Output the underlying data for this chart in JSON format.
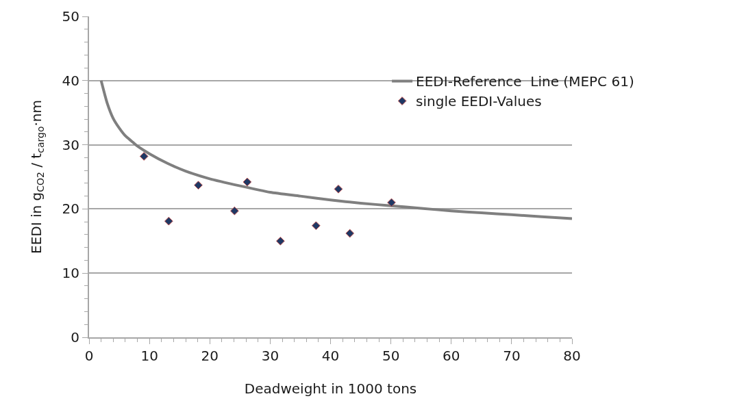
{
  "chart_data": {
    "type": "scatter",
    "xlabel": "Deadweight in 1000 tons",
    "ylabel": "EEDI in g$_{CO2}$ / t$_{cargo}$·nm",
    "series": [
      {
        "name": "EEDI-Reference  Line (MEPC 61)",
        "type": "line",
        "color": "#7f7f7f",
        "marker": "none",
        "line_style": "solid",
        "x": [
          2,
          3,
          4,
          5,
          6,
          7,
          8,
          10,
          13,
          16,
          20,
          25,
          30,
          35,
          40,
          45,
          50,
          55,
          60,
          65,
          70,
          75,
          80
        ],
        "values": [
          40.0,
          36.5,
          34.1,
          32.6,
          31.4,
          30.6,
          29.8,
          28.6,
          27.1,
          25.9,
          24.7,
          23.6,
          22.6,
          22.0,
          21.4,
          20.9,
          20.5,
          20.1,
          19.7,
          19.4,
          19.1,
          18.8,
          18.5
        ]
      },
      {
        "name": "single EEDI-Values",
        "color": "#1f3864",
        "marker": "diamond",
        "x": [
          9.1,
          13.2,
          18.1,
          24.1,
          26.2,
          31.7,
          37.6,
          41.3,
          43.2,
          50.1
        ],
        "values": [
          28.2,
          18.1,
          23.7,
          19.7,
          24.2,
          15.0,
          17.4,
          23.1,
          16.2,
          21.0
        ]
      }
    ],
    "xlim": [
      0,
      80
    ],
    "xticks": [
      0,
      {
        "value": 2,
        "label": null
      },
      {
        "value": 4,
        "label": null
      },
      {
        "value": 6,
        "label": null
      },
      {
        "value": 8,
        "label": null
      },
      10,
      {
        "value": 12,
        "label": null
      },
      {
        "value": 14,
        "label": null
      },
      {
        "value": 16,
        "label": null
      },
      {
        "value": 18,
        "label": null
      },
      20,
      {
        "value": 22,
        "label": null
      },
      {
        "value": 24,
        "label": null
      },
      {
        "value": 26,
        "label": null
      },
      {
        "value": 28,
        "label": null
      },
      30,
      {
        "value": 32,
        "label": null
      },
      {
        "value": 34,
        "label": null
      },
      {
        "value": 36,
        "label": null
      },
      {
        "value": 38,
        "label": null
      },
      40,
      {
        "value": 42,
        "label": null
      },
      {
        "value": 44,
        "label": null
      },
      {
        "value": 46,
        "label": null
      },
      {
        "value": 48,
        "label": null
      },
      50,
      {
        "value": 52,
        "label": null
      },
      {
        "value": 54,
        "label": null
      },
      {
        "value": 56,
        "label": null
      },
      {
        "value": 58,
        "label": null
      },
      60,
      {
        "value": 62,
        "label": null
      },
      {
        "value": 64,
        "label": null
      },
      {
        "value": 66,
        "label": null
      },
      {
        "value": 68,
        "label": null
      },
      70,
      {
        "value": 72,
        "label": null
      },
      {
        "value": 74,
        "label": null
      },
      {
        "value": 76,
        "label": null
      },
      {
        "value": 78,
        "label": null
      },
      80
    ],
    "ylim": [
      0,
      50
    ],
    "yticks": [
      0,
      {
        "value": 2,
        "label": null
      },
      {
        "value": 4,
        "label": null
      },
      {
        "value": 6,
        "label": null
      },
      {
        "value": 8,
        "label": null
      },
      10,
      {
        "value": 12,
        "label": null
      },
      {
        "value": 14,
        "label": null
      },
      {
        "value": 16,
        "label": null
      },
      {
        "value": 18,
        "label": null
      },
      20,
      {
        "value": 22,
        "label": null
      },
      {
        "value": 24,
        "label": null
      },
      {
        "value": 26,
        "label": null
      },
      {
        "value": 28,
        "label": null
      },
      30,
      {
        "value": 32,
        "label": null
      },
      {
        "value": 34,
        "label": null
      },
      {
        "value": 36,
        "label": null
      },
      {
        "value": 38,
        "label": null
      },
      40,
      {
        "value": 42,
        "label": null
      },
      {
        "value": 44,
        "label": null
      },
      {
        "value": 46,
        "label": null
      },
      {
        "value": 48,
        "label": null
      },
      50
    ],
    "grid": "y",
    "legend": "top right"
  }
}
